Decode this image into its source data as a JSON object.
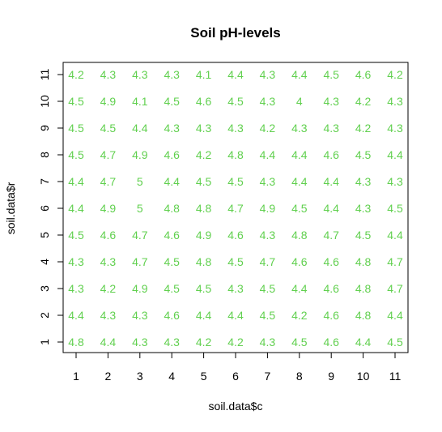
{
  "chart_data": {
    "type": "scatter",
    "title": "Soil pH-levels",
    "xlabel": "soil.data$c",
    "ylabel": "soil.data$r",
    "x_ticks": [
      "1",
      "2",
      "3",
      "4",
      "5",
      "6",
      "7",
      "8",
      "9",
      "10",
      "11"
    ],
    "y_ticks": [
      "1",
      "2",
      "3",
      "4",
      "5",
      "6",
      "7",
      "8",
      "9",
      "10",
      "11"
    ],
    "xlim": [
      1,
      11
    ],
    "ylim": [
      1,
      11
    ],
    "label_color": "#61d04f",
    "rows": [
      {
        "r": 1,
        "values": [
          "4.8",
          "4.4",
          "4.3",
          "4.3",
          "4.2",
          "4.2",
          "4.3",
          "4.5",
          "4.6",
          "4.4",
          "4.5"
        ]
      },
      {
        "r": 2,
        "values": [
          "4.4",
          "4.3",
          "4.3",
          "4.6",
          "4.4",
          "4.4",
          "4.5",
          "4.2",
          "4.6",
          "4.8",
          "4.4"
        ]
      },
      {
        "r": 3,
        "values": [
          "4.3",
          "4.2",
          "4.9",
          "4.5",
          "4.5",
          "4.3",
          "4.5",
          "4.4",
          "4.6",
          "4.8",
          "4.7"
        ]
      },
      {
        "r": 4,
        "values": [
          "4.3",
          "4.3",
          "4.7",
          "4.5",
          "4.8",
          "4.5",
          "4.7",
          "4.6",
          "4.6",
          "4.8",
          "4.7"
        ]
      },
      {
        "r": 5,
        "values": [
          "4.5",
          "4.6",
          "4.7",
          "4.6",
          "4.9",
          "4.6",
          "4.3",
          "4.8",
          "4.7",
          "4.5",
          "4.4"
        ]
      },
      {
        "r": 6,
        "values": [
          "4.4",
          "4.9",
          "5",
          "4.8",
          "4.8",
          "4.7",
          "4.9",
          "4.5",
          "4.4",
          "4.3",
          "4.5"
        ]
      },
      {
        "r": 7,
        "values": [
          "4.4",
          "4.7",
          "5",
          "4.4",
          "4.5",
          "4.5",
          "4.3",
          "4.4",
          "4.4",
          "4.3",
          "4.3"
        ]
      },
      {
        "r": 8,
        "values": [
          "4.5",
          "4.7",
          "4.9",
          "4.6",
          "4.2",
          "4.8",
          "4.4",
          "4.4",
          "4.6",
          "4.5",
          "4.4"
        ]
      },
      {
        "r": 9,
        "values": [
          "4.5",
          "4.5",
          "4.4",
          "4.3",
          "4.3",
          "4.3",
          "4.2",
          "4.3",
          "4.3",
          "4.2",
          "4.3"
        ]
      },
      {
        "r": 10,
        "values": [
          "4.5",
          "4.9",
          "4.1",
          "4.5",
          "4.6",
          "4.5",
          "4.3",
          "4",
          "4.3",
          "4.2",
          "4.3"
        ]
      },
      {
        "r": 11,
        "values": [
          "4.2",
          "4.3",
          "4.3",
          "4.3",
          "4.1",
          "4.4",
          "4.3",
          "4.4",
          "4.5",
          "4.6",
          "4.2"
        ]
      }
    ]
  }
}
